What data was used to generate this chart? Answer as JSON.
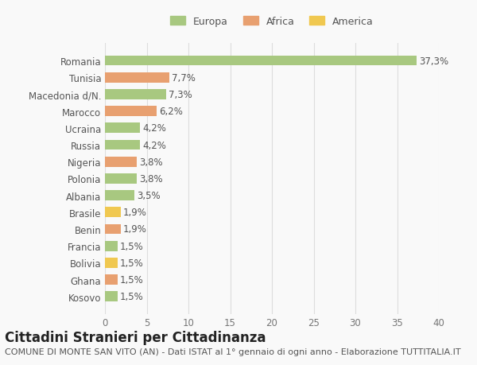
{
  "categories": [
    "Kosovo",
    "Ghana",
    "Bolivia",
    "Francia",
    "Benin",
    "Brasile",
    "Albania",
    "Polonia",
    "Nigeria",
    "Russia",
    "Ucraina",
    "Marocco",
    "Macedonia d/N.",
    "Tunisia",
    "Romania"
  ],
  "values": [
    1.5,
    1.5,
    1.5,
    1.5,
    1.9,
    1.9,
    3.5,
    3.8,
    3.8,
    4.2,
    4.2,
    6.2,
    7.3,
    7.7,
    37.3
  ],
  "colors": [
    "#a8c880",
    "#e8a070",
    "#f0c850",
    "#a8c880",
    "#e8a070",
    "#f0c850",
    "#a8c880",
    "#a8c880",
    "#e8a070",
    "#a8c880",
    "#a8c880",
    "#e8a070",
    "#a8c880",
    "#e8a070",
    "#a8c880"
  ],
  "labels": [
    "1,5%",
    "1,5%",
    "1,5%",
    "1,5%",
    "1,9%",
    "1,9%",
    "3,5%",
    "3,8%",
    "3,8%",
    "4,2%",
    "4,2%",
    "6,2%",
    "7,3%",
    "7,7%",
    "37,3%"
  ],
  "legend_labels": [
    "Europa",
    "Africa",
    "America"
  ],
  "legend_colors": [
    "#a8c880",
    "#e8a070",
    "#f0c850"
  ],
  "title": "Cittadini Stranieri per Cittadinanza",
  "subtitle": "COMUNE DI MONTE SAN VITO (AN) - Dati ISTAT al 1° gennaio di ogni anno - Elaborazione TUTTITALIA.IT",
  "xlim": [
    0,
    40
  ],
  "xticks": [
    0,
    5,
    10,
    15,
    20,
    25,
    30,
    35,
    40
  ],
  "background_color": "#f9f9f9",
  "grid_color": "#dddddd",
  "bar_height": 0.6,
  "title_fontsize": 12,
  "subtitle_fontsize": 8,
  "label_fontsize": 8.5,
  "tick_fontsize": 8.5,
  "legend_fontsize": 9
}
